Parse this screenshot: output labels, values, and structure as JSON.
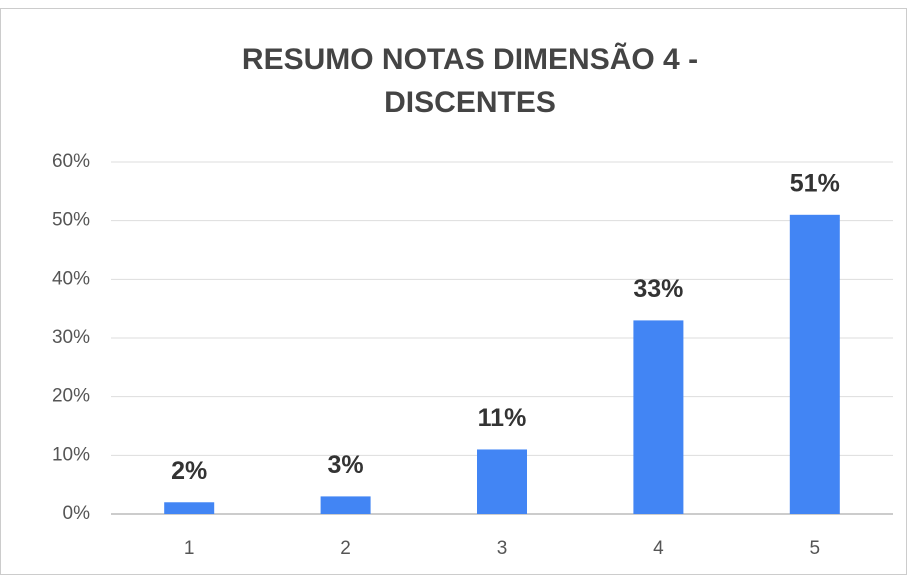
{
  "chart_data": {
    "type": "bar",
    "title": "RESUMO NOTAS DIMENSÃO 4 - DISCENTES",
    "categories": [
      "1",
      "2",
      "3",
      "4",
      "5"
    ],
    "values": [
      2,
      3,
      11,
      33,
      51
    ],
    "value_labels": [
      "2%",
      "3%",
      "11%",
      "33%",
      "51%"
    ],
    "color": "#4285f4",
    "ylim": [
      0,
      60
    ],
    "yticks": [
      {
        "value": 0,
        "label": "0%"
      },
      {
        "value": 10,
        "label": "10%"
      },
      {
        "value": 20,
        "label": "20%"
      },
      {
        "value": 30,
        "label": "30%"
      },
      {
        "value": 40,
        "label": "40%"
      },
      {
        "value": 50,
        "label": "50%"
      },
      {
        "value": 60,
        "label": "60%"
      }
    ],
    "grid": true
  }
}
